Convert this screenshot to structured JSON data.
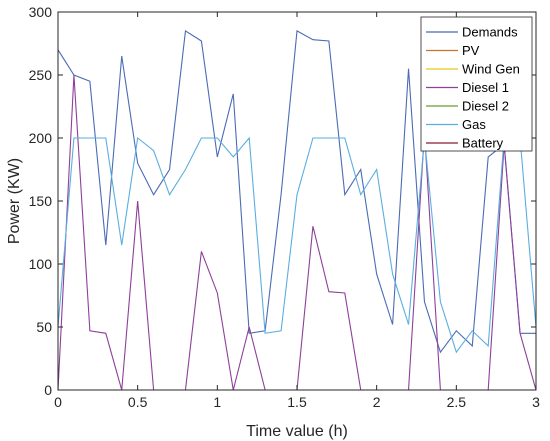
{
  "chart_data": {
    "type": "line",
    "title": "",
    "xlabel": "Time value (h)",
    "ylabel": "Power (KW)",
    "xlim": [
      0,
      3
    ],
    "ylim": [
      0,
      300
    ],
    "xticks": [
      0,
      0.5,
      1,
      1.5,
      2,
      2.5,
      3
    ],
    "xtick_labels": [
      "0",
      "0.5",
      "1",
      "1.5",
      "2",
      "2.5",
      "3"
    ],
    "yticks": [
      0,
      50,
      100,
      150,
      200,
      250,
      300
    ],
    "ytick_labels": [
      "0",
      "50",
      "100",
      "150",
      "200",
      "250",
      "300"
    ],
    "grid": false,
    "legend_position": "top-right",
    "x": [
      0,
      0.1,
      0.2,
      0.3,
      0.4,
      0.5,
      0.6,
      0.7,
      0.8,
      0.9,
      1.0,
      1.1,
      1.2,
      1.3,
      1.4,
      1.5,
      1.6,
      1.7,
      1.8,
      1.9,
      2.0,
      2.1,
      2.2,
      2.3,
      2.4,
      2.5,
      2.6,
      2.7,
      2.8,
      2.9,
      3.0
    ],
    "series": [
      {
        "name": "Demands",
        "color": "#4a6bb5",
        "values": [
          270,
          250,
          245,
          115,
          265,
          180,
          155,
          175,
          285,
          277,
          185,
          235,
          45,
          47,
          155,
          285,
          278,
          277,
          155,
          175,
          92,
          52,
          255,
          70,
          30,
          47,
          35,
          185,
          195,
          45,
          45
        ]
      },
      {
        "name": "PV",
        "color": "#c8732a",
        "values": [
          0,
          0,
          0,
          0,
          0,
          0,
          0,
          0,
          0,
          0,
          0,
          0,
          0,
          0,
          0,
          0,
          0,
          0,
          0,
          0,
          0,
          0,
          0,
          0,
          0,
          0,
          0,
          0,
          0,
          0,
          0
        ]
      },
      {
        "name": "Wind Gen",
        "color": "#e6c619",
        "values": [
          0,
          0,
          0,
          0,
          0,
          0,
          0,
          0,
          0,
          0,
          0,
          0,
          0,
          0,
          0,
          0,
          0,
          0,
          0,
          0,
          0,
          0,
          0,
          0,
          0,
          0,
          0,
          0,
          0,
          0,
          0
        ]
      },
      {
        "name": "Diesel 1",
        "color": "#8e3f9a",
        "values": [
          0,
          250,
          47,
          45,
          0,
          150,
          0,
          0,
          0,
          110,
          77,
          0,
          50,
          0,
          0,
          0,
          130,
          78,
          77,
          0,
          0,
          0,
          0,
          205,
          0,
          0,
          0,
          0,
          195,
          45,
          0
        ]
      },
      {
        "name": "Diesel 2",
        "color": "#6e9a36",
        "values": [
          0,
          0,
          0,
          0,
          0,
          0,
          0,
          0,
          0,
          0,
          0,
          0,
          0,
          0,
          0,
          0,
          0,
          0,
          0,
          0,
          0,
          0,
          0,
          0,
          0,
          0,
          0,
          0,
          0,
          0,
          0
        ]
      },
      {
        "name": "Gas",
        "color": "#5aaee0",
        "values": [
          50,
          200,
          200,
          200,
          115,
          200,
          190,
          155,
          175,
          200,
          200,
          185,
          200,
          45,
          47,
          155,
          200,
          200,
          200,
          155,
          175,
          92,
          52,
          200,
          70,
          30,
          47,
          35,
          200,
          200,
          50
        ]
      },
      {
        "name": "Battery",
        "color": "#8a1e2e",
        "values": [
          0,
          0,
          0,
          0,
          0,
          0,
          0,
          0,
          0,
          0,
          0,
          0,
          0,
          0,
          0,
          0,
          0,
          0,
          0,
          0,
          0,
          0,
          0,
          0,
          0,
          0,
          0,
          0,
          0,
          0,
          0
        ]
      }
    ]
  }
}
